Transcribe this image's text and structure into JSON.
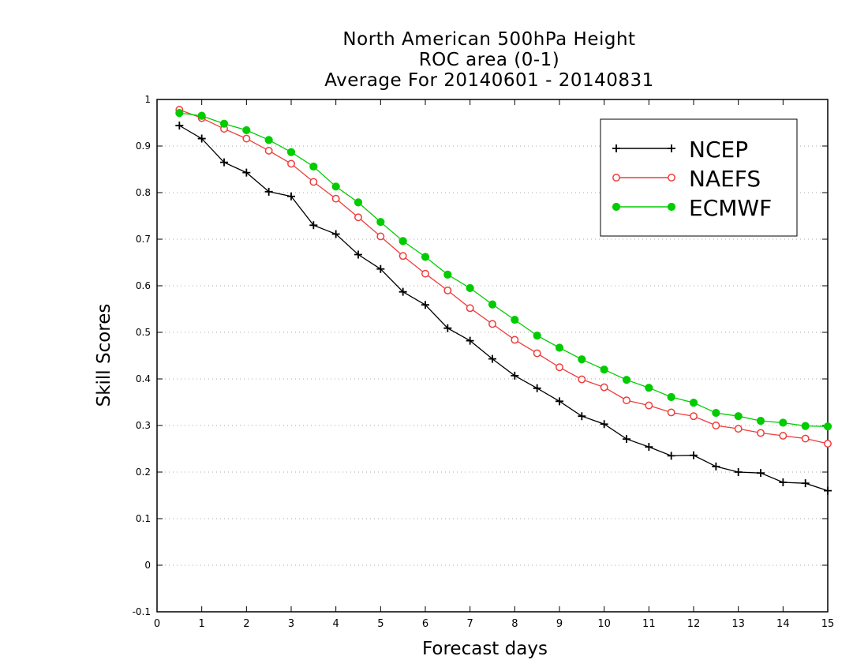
{
  "chart_data": {
    "type": "line",
    "title": [
      "North American 500hPa Height",
      "ROC area (0-1)",
      "Average For 20140601 - 20140831"
    ],
    "xlabel": "Forecast days",
    "ylabel": "Skill Scores",
    "xlim": [
      0,
      15
    ],
    "ylim": [
      -0.1,
      1
    ],
    "x_ticks": [
      "0",
      "1",
      "2",
      "3",
      "4",
      "5",
      "6",
      "7",
      "8",
      "9",
      "10",
      "11",
      "12",
      "13",
      "14",
      "15"
    ],
    "y_ticks": [
      "-0.1",
      "0",
      "0.1",
      "0.2",
      "0.3",
      "0.4",
      "0.5",
      "0.6",
      "0.7",
      "0.8",
      "0.9",
      "1"
    ],
    "grid": "horizontal dotted",
    "legend_placement": "top-right",
    "x": [
      0.5,
      1,
      1.5,
      2,
      2.5,
      3,
      3.5,
      4,
      4.5,
      5,
      5.5,
      6,
      6.5,
      7,
      7.5,
      8,
      8.5,
      9,
      9.5,
      10,
      10.5,
      11,
      11.5,
      12,
      12.5,
      13,
      13.5,
      14,
      14.5,
      15
    ],
    "series": [
      {
        "name": "NCEP",
        "color": "#000000",
        "marker": "plus",
        "values": [
          0.944,
          0.916,
          0.865,
          0.843,
          0.802,
          0.792,
          0.73,
          0.711,
          0.667,
          0.636,
          0.587,
          0.559,
          0.509,
          0.482,
          0.443,
          0.407,
          0.38,
          0.352,
          0.32,
          0.303,
          0.271,
          0.254,
          0.235,
          0.236,
          0.212,
          0.2,
          0.198,
          0.178,
          0.176,
          0.16
        ]
      },
      {
        "name": "NAEFS",
        "color": "#f03c3c",
        "marker": "open-circle",
        "values": [
          0.978,
          0.96,
          0.937,
          0.916,
          0.89,
          0.862,
          0.823,
          0.787,
          0.747,
          0.706,
          0.664,
          0.626,
          0.59,
          0.552,
          0.518,
          0.484,
          0.455,
          0.425,
          0.399,
          0.382,
          0.354,
          0.343,
          0.328,
          0.32,
          0.3,
          0.293,
          0.284,
          0.278,
          0.272,
          0.261
        ]
      },
      {
        "name": "ECMWF",
        "color": "#00cc00",
        "marker": "filled-circle",
        "values": [
          0.971,
          0.965,
          0.948,
          0.934,
          0.913,
          0.887,
          0.856,
          0.813,
          0.779,
          0.737,
          0.696,
          0.662,
          0.624,
          0.595,
          0.56,
          0.527,
          0.493,
          0.467,
          0.442,
          0.42,
          0.398,
          0.381,
          0.361,
          0.349,
          0.327,
          0.32,
          0.31,
          0.306,
          0.299,
          0.298
        ]
      }
    ]
  }
}
